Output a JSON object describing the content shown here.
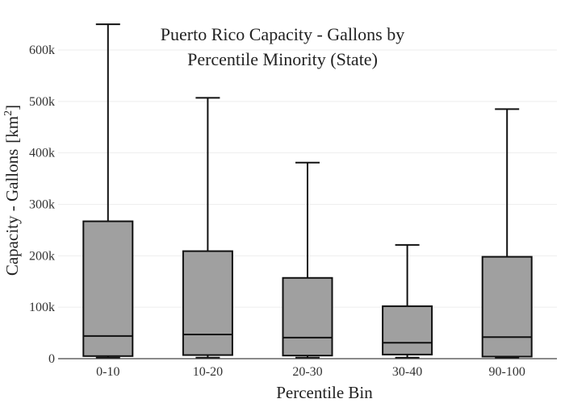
{
  "chart_data": {
    "type": "box",
    "title": [
      "Puerto Rico Capacity - Gallons by",
      "Percentile Minority (State)"
    ],
    "xlabel": "Percentile Bin",
    "ylabel": "Capacity - Gallons",
    "ylabel_unit_base": "km",
    "ylabel_unit_exp": "2",
    "ylim": [
      0,
      650000
    ],
    "y_ticks": [
      0,
      100000,
      200000,
      300000,
      400000,
      500000,
      600000
    ],
    "y_tick_labels": [
      "0",
      "100k",
      "200k",
      "300k",
      "400k",
      "500k",
      "600k"
    ],
    "grid": true,
    "legend": "none",
    "box_fill": "#a0a0a0",
    "line_color": "#111111",
    "categories": [
      "0-10",
      "10-20",
      "20-30",
      "30-40",
      "90-100"
    ],
    "boxes": [
      {
        "category": "0-10",
        "min": 2000,
        "q1": 5000,
        "median": 44000,
        "q3": 267000,
        "max": 650000
      },
      {
        "category": "10-20",
        "min": 2000,
        "q1": 7000,
        "median": 47000,
        "q3": 209000,
        "max": 507000
      },
      {
        "category": "20-30",
        "min": 2000,
        "q1": 6000,
        "median": 41000,
        "q3": 157000,
        "max": 381000
      },
      {
        "category": "30-40",
        "min": 2000,
        "q1": 8000,
        "median": 31000,
        "q3": 102000,
        "max": 221000
      },
      {
        "category": "90-100",
        "min": 2000,
        "q1": 4000,
        "median": 42000,
        "q3": 198000,
        "max": 485000
      }
    ]
  }
}
